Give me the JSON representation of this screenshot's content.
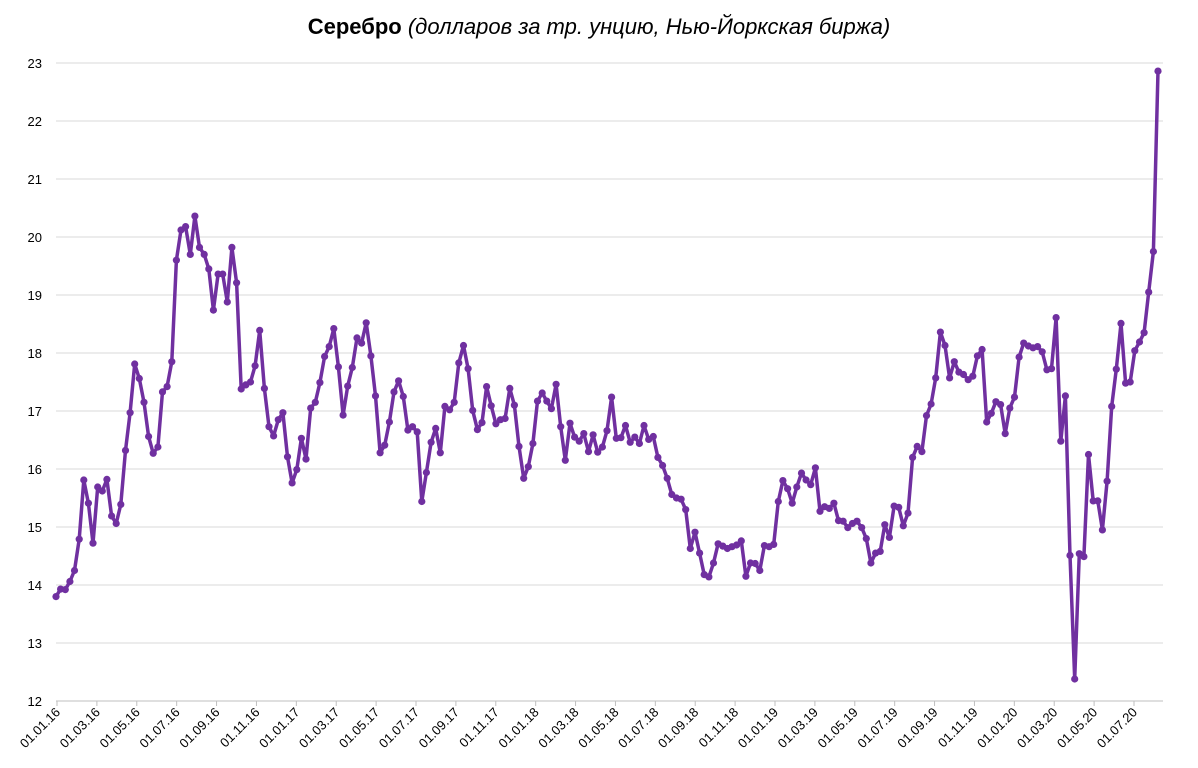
{
  "chart_data": {
    "type": "line",
    "title": "Серебро",
    "subtitle": "(долларов за тр. унцию, Нью-Йоркская биржа)",
    "xlabel": "",
    "ylabel": "",
    "ylim": [
      12,
      23
    ],
    "y_ticks": [
      12,
      13,
      14,
      15,
      16,
      17,
      18,
      19,
      20,
      21,
      22,
      23
    ],
    "x_tick_labels": [
      "01.01.16",
      "01.03.16",
      "01.05.16",
      "01.07.16",
      "01.09.16",
      "01.11.16",
      "01.01.17",
      "01.03.17",
      "01.05.17",
      "01.07.17",
      "01.09.17",
      "01.11.17",
      "01.01.18",
      "01.03.18",
      "01.05.18",
      "01.07.18",
      "01.09.18",
      "01.11.18",
      "01.01.19",
      "01.03.19",
      "01.05.19",
      "01.07.19",
      "01.09.19",
      "01.11.19",
      "01.01.20",
      "01.03.20",
      "01.05.20",
      "01.07.20"
    ],
    "grid": true,
    "color": "#7030a0",
    "series": [
      {
        "values": [
          13.8,
          13.93,
          13.92,
          14.06,
          14.25,
          14.79,
          15.81,
          15.41,
          14.72,
          15.69,
          15.62,
          15.82,
          15.19,
          15.06,
          15.39,
          16.32,
          16.97,
          17.81,
          17.56,
          17.15,
          16.56,
          16.27,
          16.38,
          17.33,
          17.42,
          17.85,
          19.6,
          20.12,
          20.18,
          19.7,
          20.36,
          19.82,
          19.7,
          19.45,
          18.74,
          19.36,
          19.36,
          18.88,
          19.82,
          19.21,
          17.38,
          17.45,
          17.5,
          17.78,
          18.39,
          17.39,
          16.73,
          16.57,
          16.85,
          16.97,
          16.21,
          15.76,
          15.99,
          16.53,
          16.17,
          17.05,
          17.15,
          17.49,
          17.94,
          18.11,
          18.42,
          17.76,
          16.93,
          17.43,
          17.75,
          18.26,
          18.17,
          18.52,
          17.95,
          17.26,
          16.28,
          16.41,
          16.81,
          17.33,
          17.52,
          17.25,
          16.67,
          16.73,
          16.64,
          15.44,
          15.94,
          16.46,
          16.7,
          16.28,
          17.08,
          17.02,
          17.15,
          17.83,
          18.13,
          17.73,
          17.01,
          16.68,
          16.8,
          17.42,
          17.09,
          16.78,
          16.85,
          16.87,
          17.39,
          17.1,
          16.39,
          15.84,
          16.04,
          16.44,
          17.17,
          17.31,
          17.17,
          17.04,
          17.46,
          16.73,
          16.15,
          16.79,
          16.55,
          16.48,
          16.61,
          16.3,
          16.59,
          16.29,
          16.38,
          16.66,
          17.24,
          16.53,
          16.54,
          16.75,
          16.46,
          16.55,
          16.44,
          16.75,
          16.51,
          16.56,
          16.2,
          16.06,
          15.84,
          15.56,
          15.5,
          15.48,
          15.3,
          14.63,
          14.91,
          14.55,
          14.18,
          14.14,
          14.38,
          14.71,
          14.67,
          14.63,
          14.66,
          14.69,
          14.76,
          14.15,
          14.38,
          14.37,
          14.25,
          14.68,
          14.66,
          14.7,
          15.44,
          15.8,
          15.66,
          15.41,
          15.69,
          15.93,
          15.81,
          15.73,
          16.02,
          15.27,
          15.35,
          15.32,
          15.41,
          15.11,
          15.1,
          14.99,
          15.06,
          15.1,
          14.99,
          14.8,
          14.38,
          14.55,
          14.58,
          15.04,
          14.82,
          15.36,
          15.34,
          15.02,
          15.24,
          16.2,
          16.39,
          16.3,
          16.92,
          17.12,
          17.57,
          18.36,
          18.13,
          17.57,
          17.85,
          17.67,
          17.63,
          17.54,
          17.6,
          17.95,
          18.06,
          16.81,
          16.96,
          17.16,
          17.11,
          16.61,
          17.05,
          17.24,
          17.93,
          18.17,
          18.12,
          18.09,
          18.11,
          18.02,
          17.71,
          17.73,
          18.61,
          16.48,
          17.26,
          14.51,
          12.38,
          14.54,
          14.49,
          16.25,
          15.45,
          15.45,
          14.95,
          15.79,
          17.08,
          17.72,
          18.51,
          17.48,
          17.5,
          18.04,
          18.19,
          18.35,
          19.05,
          19.75,
          22.86
        ]
      }
    ]
  }
}
